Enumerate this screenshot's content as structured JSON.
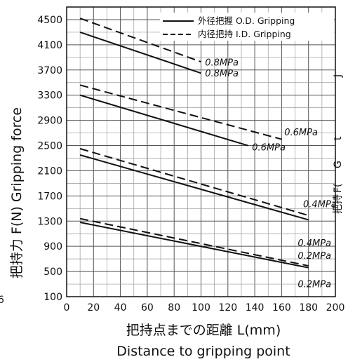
{
  "chart_data": {
    "type": "line",
    "title": "",
    "ylabel": "把持力 F(N) Gripping force",
    "xlabel_line1": "把持点までの距離 L(mm)",
    "xlabel_line2": "Distance to gripping point",
    "xlim": [
      0,
      200
    ],
    "ylim": [
      100,
      4700
    ],
    "xticks": [
      0,
      20,
      40,
      60,
      80,
      100,
      120,
      140,
      160,
      180,
      200
    ],
    "yticks": [
      100,
      500,
      900,
      1300,
      1700,
      2100,
      2500,
      2900,
      3300,
      3700,
      4100,
      4500
    ],
    "grid": true,
    "legend": {
      "position": "top-right",
      "entries": [
        {
          "label": "外径把握 O.D. Gripping",
          "style": "solid"
        },
        {
          "label": "内径把持 I.D. Gripping",
          "style": "dashed"
        }
      ]
    },
    "series": [
      {
        "pressure": "0.8MPa",
        "style": "solid",
        "x": [
          10,
          100
        ],
        "y": [
          4300,
          3650
        ]
      },
      {
        "pressure": "0.8MPa",
        "style": "dashed",
        "x": [
          10,
          100
        ],
        "y": [
          4520,
          3830
        ]
      },
      {
        "pressure": "0.6MPa",
        "style": "solid",
        "x": [
          10,
          135
        ],
        "y": [
          3300,
          2500
        ]
      },
      {
        "pressure": "0.6MPa",
        "style": "dashed",
        "x": [
          10,
          160
        ],
        "y": [
          3460,
          2600
        ]
      },
      {
        "pressure": "0.4MPa",
        "style": "solid",
        "x": [
          10,
          180
        ],
        "y": [
          2350,
          1320
        ]
      },
      {
        "pressure": "0.4MPa",
        "style": "dashed",
        "x": [
          10,
          180
        ],
        "y": [
          2450,
          1390
        ]
      },
      {
        "pressure": "0.2MPa",
        "style": "solid",
        "x": [
          10,
          180
        ],
        "y": [
          1280,
          560
        ]
      },
      {
        "pressure": "0.2MPa",
        "style": "dashed",
        "x": [
          10,
          180
        ],
        "y": [
          1340,
          590
        ]
      }
    ],
    "annotations": [
      {
        "text": "0.8MPa",
        "x": 103,
        "y": 3770
      },
      {
        "text": "0.8MPa",
        "x": 103,
        "y": 3600
      },
      {
        "text": "0.6MPa",
        "x": 162,
        "y": 2660
      },
      {
        "text": "0.6MPa",
        "x": 138,
        "y": 2420
      },
      {
        "text": "0.4MPa",
        "x": 176,
        "y": 1520
      },
      {
        "text": "0.4MPa",
        "x": 172,
        "y": 900
      },
      {
        "text": "0.2MPa",
        "x": 172,
        "y": 700
      },
      {
        "text": "0.2MPa",
        "x": 172,
        "y": 250
      }
    ],
    "cropped_edge_text": {
      "right": [
        "J",
        "t",
        "G",
        "F(",
        "把持"
      ],
      "left": [
        "6"
      ]
    }
  }
}
